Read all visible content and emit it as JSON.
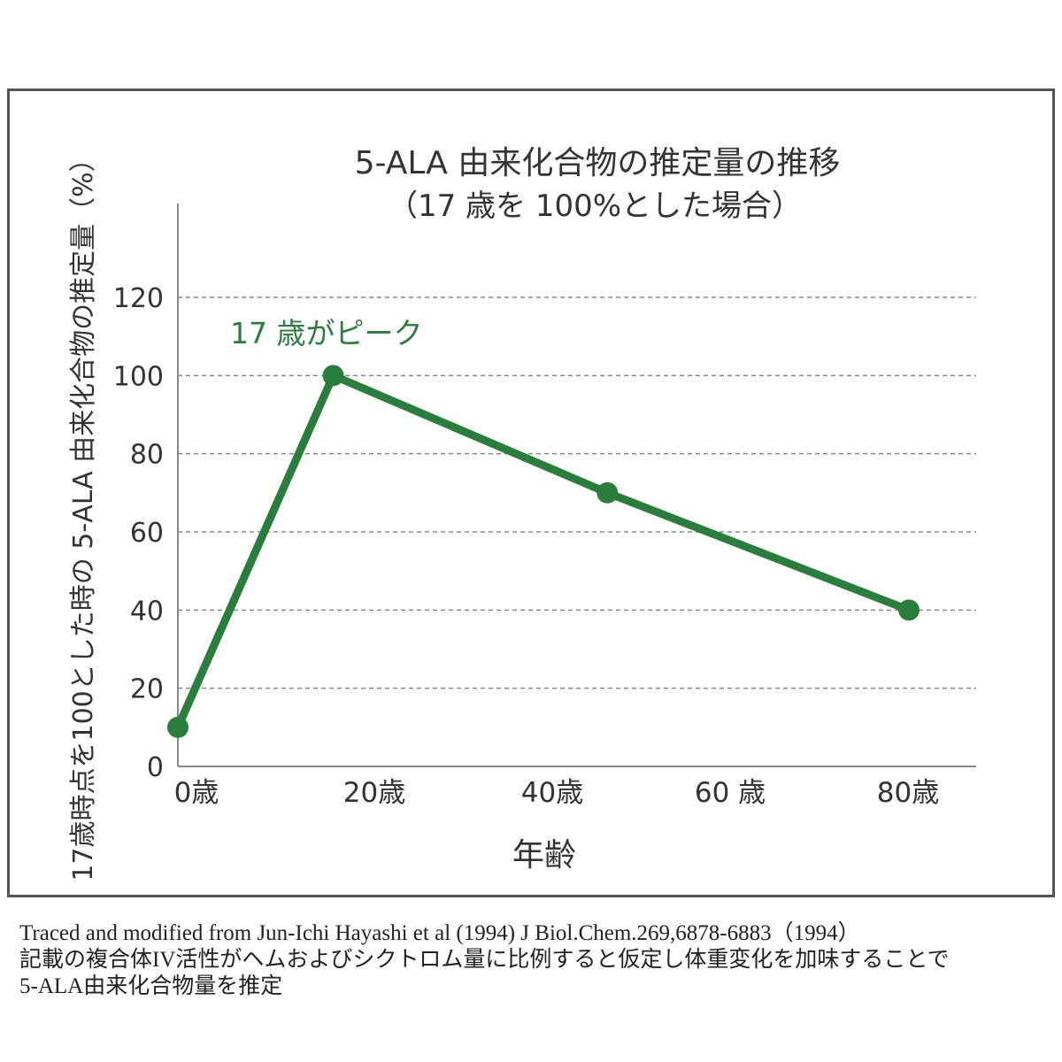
{
  "chart_data": {
    "type": "line",
    "title": "5-ALA 由来化合物の推定量の推移",
    "subtitle": "（17 歳を 100%とした場合）",
    "xlabel": "年齢",
    "ylabel": "17歳時点を100とした時の 5-ALA 由来化合物の推定量（%）",
    "x_ticks": [
      {
        "value": 0,
        "label": "0歳"
      },
      {
        "value": 20,
        "label": "20歳"
      },
      {
        "value": 40,
        "label": "40歳"
      },
      {
        "value": 60,
        "label": "60 歳"
      },
      {
        "value": 80,
        "label": "80歳"
      }
    ],
    "y_ticks": [
      0,
      20,
      40,
      60,
      80,
      100,
      120
    ],
    "ylim": [
      0,
      120
    ],
    "xlim": [
      0,
      80
    ],
    "grid": "horizontal dashed",
    "series": [
      {
        "x": [
          0,
          17,
          47,
          80
        ],
        "y": [
          10,
          100,
          70,
          40
        ],
        "color": "#2a7e3b"
      }
    ],
    "annotations": [
      {
        "text": "17 歳がピーク",
        "color": "#2a7e3b"
      }
    ]
  },
  "caption": {
    "line1": "Traced and modified from Jun-Ichi Hayashi et al (1994) J Biol.Chem.269,6878-6883（1994）",
    "line2": "記載の複合体IV活性がヘムおよびシクトロム量に比例すると仮定し体重変化を加味することで",
    "line3": "5-ALA由来化合物量を推定"
  }
}
